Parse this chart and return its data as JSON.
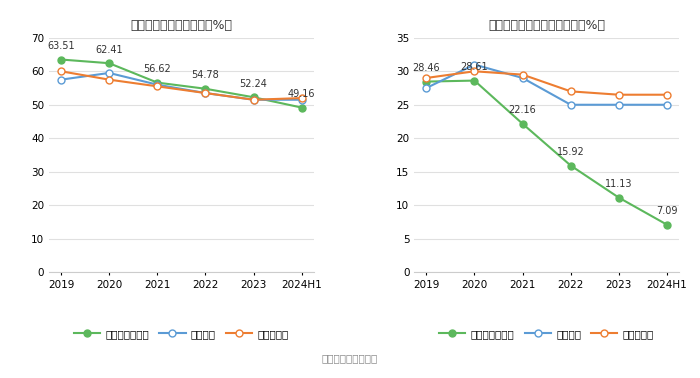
{
  "left_title": "近年来资产负债率情况（%）",
  "right_title": "近年来有息资产负债率情况（%）",
  "x_labels": [
    "2019",
    "2020",
    "2021",
    "2022",
    "2023",
    "2024H1"
  ],
  "left": {
    "company": [
      63.51,
      62.41,
      56.62,
      54.78,
      52.24,
      49.16
    ],
    "avg": [
      57.5,
      59.5,
      56.0,
      53.5,
      51.5,
      51.5
    ],
    "median": [
      60.0,
      57.5,
      55.5,
      53.5,
      51.5,
      52.0
    ],
    "ylim": [
      0,
      70
    ],
    "yticks": [
      0,
      10,
      20,
      30,
      40,
      50,
      60,
      70
    ]
  },
  "right": {
    "company": [
      28.46,
      28.61,
      22.16,
      15.92,
      11.13,
      7.09
    ],
    "avg": [
      27.5,
      31.0,
      29.0,
      25.0,
      25.0,
      25.0
    ],
    "median": [
      29.0,
      30.0,
      29.5,
      27.0,
      26.5,
      26.5
    ],
    "ylim": [
      0,
      35
    ],
    "yticks": [
      0,
      5,
      10,
      15,
      20,
      25,
      30,
      35
    ]
  },
  "company_color": "#5cb85c",
  "avg_color": "#5b9bd5",
  "median_color": "#ed7d31",
  "left_legend": [
    "公司资产负债率",
    "行业均值",
    "行业中位数"
  ],
  "right_legend": [
    "有息资产负债率",
    "行业均值",
    "行业中位数"
  ],
  "source_text": "数据来源：恒生聚源",
  "bg_color": "#ffffff",
  "grid_color": "#e0e0e0"
}
